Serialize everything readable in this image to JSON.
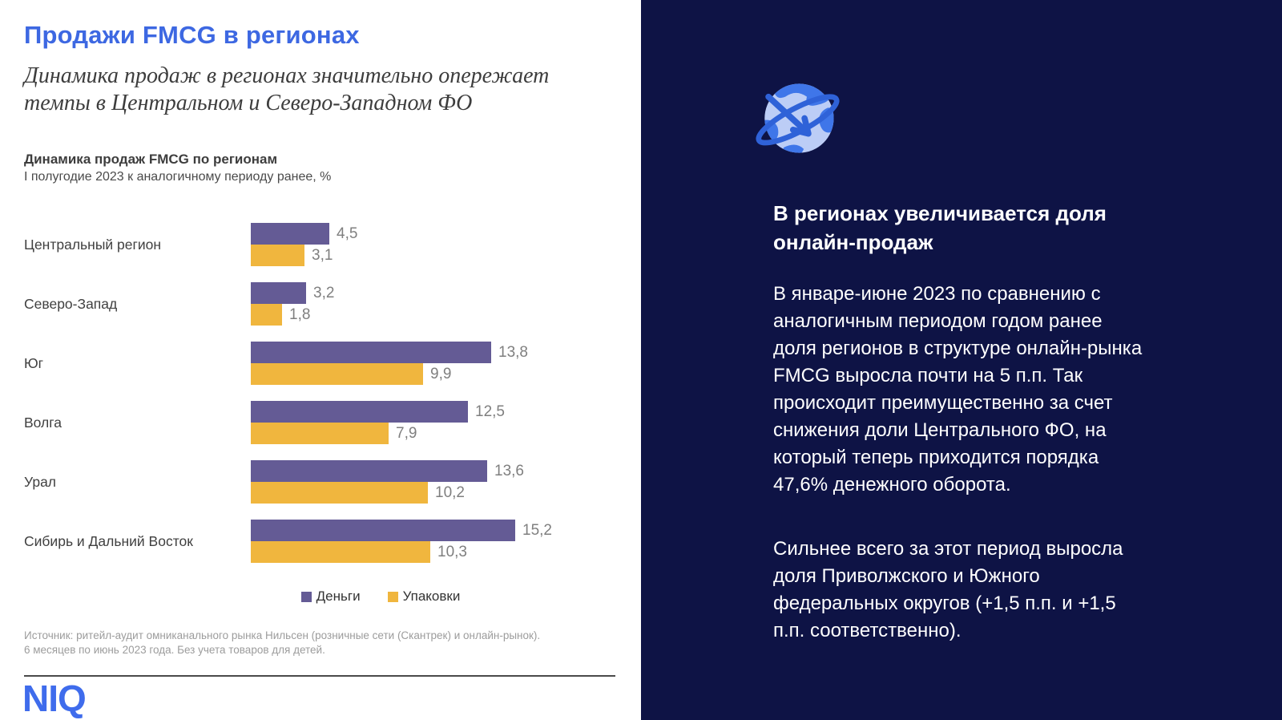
{
  "slide": {
    "title": "Продажи FMCG в регионах",
    "subtitle_lines": [
      "Динамика продаж в регионах значительно опережает",
      "темпы в Центральном и Северо-Западном ФО"
    ],
    "source_lines": [
      "Источник: ритейл-аудит омниканального рынка Нильсен (розничные сети (Скантрек) и онлайн-рынок).",
      "6 месяцев по июнь 2023 года. Без учета товаров для детей."
    ],
    "logo_text": "NIQ"
  },
  "chart_data": {
    "type": "bar",
    "orientation": "horizontal",
    "title": "Динамика продаж FMCG по регионам",
    "subtitle": "I полугодие 2023 к аналогичному периоду ранее, %",
    "unit": "%",
    "categories": [
      "Центральный регион",
      "Северо-Запад",
      "Юг",
      "Волга",
      "Урал",
      "Сибирь и Дальний Восток"
    ],
    "series": [
      {
        "name": "Деньги",
        "color": "#645B95",
        "values": [
          4.5,
          3.2,
          13.8,
          12.5,
          13.6,
          15.2
        ],
        "labels": [
          "4,5",
          "3,2",
          "13,8",
          "12,5",
          "13,6",
          "15,2"
        ]
      },
      {
        "name": "Упаковки",
        "color": "#F0B63E",
        "values": [
          3.1,
          1.8,
          9.9,
          7.9,
          10.2,
          10.3
        ],
        "labels": [
          "3,1",
          "1,8",
          "9,9",
          "7,9",
          "10,2",
          "10,3"
        ]
      }
    ],
    "x_max": 15.2,
    "grid": false,
    "legend_position": "bottom"
  },
  "right_panel": {
    "icon_name": "globe-orbit-arrow-icon",
    "heading_lines": [
      "В регионах увеличивается доля",
      "онлайн-продаж"
    ],
    "paragraph1_lines": [
      "В январе-июне 2023 по сравнению с",
      "аналогичным периодом годом ранее",
      "доля регионов в структуре онлайн-рынка",
      "FMCG выросла почти на 5 п.п. Так",
      "происходит преимущественно за счет",
      "снижения доли Центрального ФО, на",
      "который теперь приходится порядка",
      "47,6% денежного оборота."
    ],
    "paragraph2_lines": [
      "Сильнее всего за этот период выросла",
      "доля Приволжского и Южного",
      "федеральных округов (+1,5 п.п. и +1,5",
      "п.п. соответственно)."
    ]
  },
  "colors": {
    "accent_blue": "#3D68E2",
    "logo_blue": "#3F6CEC",
    "money_purple": "#645B95",
    "packs_yellow": "#F0B63E",
    "panel_navy": "#0E1345",
    "value_label_gray": "#7F7F7F",
    "region_label_gray": "#404040",
    "source_gray": "#9C9C9C",
    "globe_light": "#BCCDF6",
    "globe_medium": "#3F76E9",
    "globe_ring": "#2F62D8"
  }
}
